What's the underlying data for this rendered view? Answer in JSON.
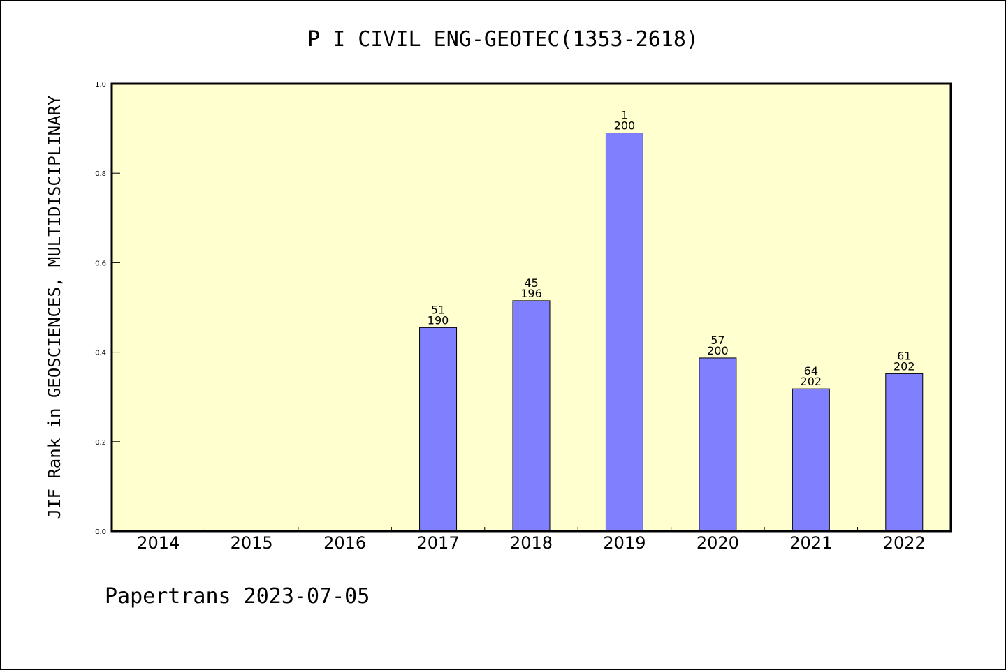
{
  "chart_data": {
    "type": "bar",
    "title": "P I CIVIL ENG-GEOTEC(1353-2618)",
    "ylabel": "JIF Rank in GEOSCIENCES, MULTIDISCIPLINARY",
    "xlabel": "",
    "ylim": [
      0,
      1.0
    ],
    "yticks": [
      "0.0",
      "0.2",
      "0.4",
      "0.6",
      "0.8",
      "1.0"
    ],
    "categories": [
      "2014",
      "2015",
      "2016",
      "2017",
      "2018",
      "2019",
      "2020",
      "2021",
      "2022"
    ],
    "values": [
      null,
      null,
      null,
      0.455,
      0.515,
      0.89,
      0.387,
      0.318,
      0.352
    ],
    "ranks": [
      null,
      null,
      null,
      "51",
      "45",
      "1",
      "57",
      "64",
      "61"
    ],
    "totals": [
      null,
      null,
      null,
      "190",
      "196",
      "200",
      "200",
      "202",
      "202"
    ],
    "grid": false,
    "colors": {
      "bar": "#8080ff",
      "plot_background": "#ffffd0",
      "axis": "#000000"
    }
  },
  "footer": "Papertrans 2023-07-05"
}
